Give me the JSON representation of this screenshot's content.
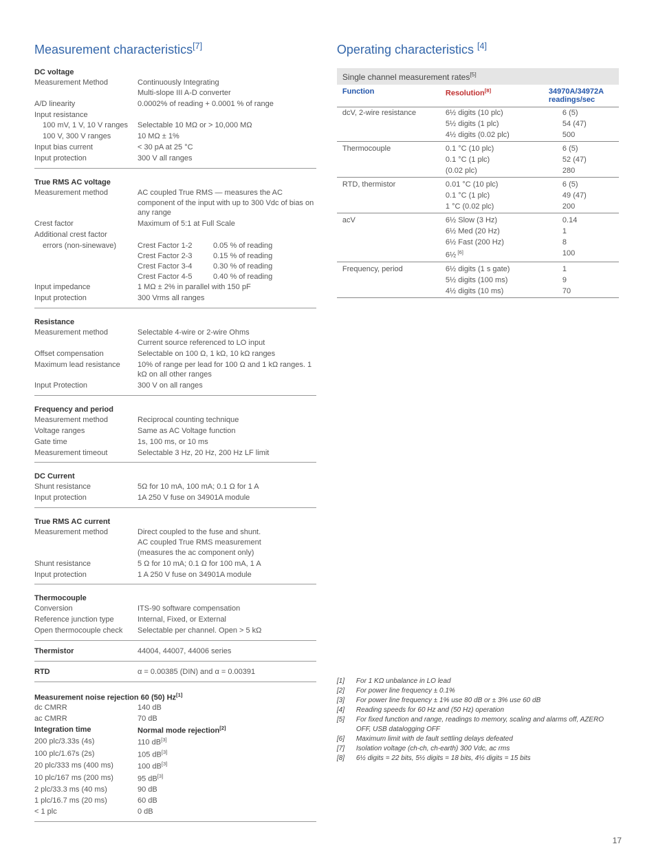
{
  "left": {
    "title": "Measurement characteristics",
    "title_sup": "[7]",
    "sections": [
      {
        "heading": "DC voltage",
        "rows": [
          {
            "label": "Measurement Method",
            "value": "Continuously Integrating\nMulti-slope III A-D converter"
          },
          {
            "label": "A/D linearity",
            "value": "0.0002% of reading + 0.0001 % of range"
          },
          {
            "label": "Input resistance",
            "value": ""
          },
          {
            "label": "100 mV, 1 V, 10 V ranges",
            "indent": true,
            "value": "Selectable 10 MΩ or > 10,000 MΩ"
          },
          {
            "label": "100 V, 300 V ranges",
            "indent": true,
            "value": "10 MΩ ± 1%"
          },
          {
            "label": "Input bias current",
            "value": "< 30 pA at 25 °C"
          },
          {
            "label": "Input protection",
            "value": "300 V all ranges"
          }
        ]
      },
      {
        "heading": "True RMS AC voltage",
        "rows": [
          {
            "label": "Measurement method",
            "value": "AC coupled True RMS — measures the AC component of the input with up to 300 Vdc of bias on any range"
          },
          {
            "label": "Crest factor",
            "value": "Maximum of 5:1 at Full Scale"
          },
          {
            "label": "Additional crest factor",
            "value": ""
          },
          {
            "label": "errors (non-sinewave)",
            "indent": true,
            "cf": [
              {
                "l": "Crest Factor 1-2",
                "r": "0.05 % of reading"
              },
              {
                "l": "Crest Factor 2-3",
                "r": "0.15 % of reading"
              },
              {
                "l": "Crest Factor 3-4",
                "r": "0.30 % of reading"
              },
              {
                "l": "Crest Factor 4-5",
                "r": "0.40 % of reading"
              }
            ]
          },
          {
            "label": "Input impedance",
            "value": "1 MΩ ± 2% in parallel with 150 pF"
          },
          {
            "label": "Input protection",
            "value": "300 Vrms all ranges"
          }
        ]
      },
      {
        "heading": "Resistance",
        "rows": [
          {
            "label": "Measurement method",
            "value": "Selectable 4-wire or 2-wire Ohms\nCurrent source referenced to LO input"
          },
          {
            "label": "Offset compensation",
            "value": "Selectable on 100 Ω, 1 kΩ, 10 kΩ ranges"
          },
          {
            "label": "Maximum lead resistance",
            "value": "10% of range per lead for 100 Ω and 1 kΩ ranges. 1 kΩ on all other ranges"
          },
          {
            "label": "Input Protection",
            "value": "300 V on all ranges"
          }
        ]
      },
      {
        "heading": "Frequency and period",
        "rows": [
          {
            "label": "Measurement method",
            "value": "Reciprocal counting technique"
          },
          {
            "label": "Voltage ranges",
            "value": "Same as AC Voltage function"
          },
          {
            "label": "Gate time",
            "value": "1s, 100 ms, or 10 ms"
          },
          {
            "label": "Measurement timeout",
            "value": "Selectable 3 Hz, 20 Hz, 200 Hz LF limit"
          }
        ]
      },
      {
        "heading": "DC Current",
        "rows": [
          {
            "label": "Shunt resistance",
            "value": "5Ω for 10 mA, 100 mA; 0.1 Ω for 1 A"
          },
          {
            "label": "Input protection",
            "value": "1A 250 V fuse on 34901A module"
          }
        ]
      },
      {
        "heading": "True RMS AC current",
        "rows": [
          {
            "label": "Measurement method",
            "value": "Direct coupled to the fuse and shunt.\nAC coupled True RMS measurement\n(measures the ac component only)"
          },
          {
            "label": "Shunt resistance",
            "value": "5 Ω for 10 mA; 0.1 Ω for 100 mA, 1 A"
          },
          {
            "label": "Input protection",
            "value": "1 A 250 V fuse on 34901A module"
          }
        ]
      },
      {
        "heading": "Thermocouple",
        "rows": [
          {
            "label": "Conversion",
            "value": "ITS-90 software compensation"
          },
          {
            "label": "Reference junction type",
            "value": "Internal, Fixed, or External"
          },
          {
            "label": "Open thermocouple check",
            "value": "Selectable per channel. Open > 5 kΩ"
          }
        ]
      },
      {
        "heading": "Thermistor",
        "single": true,
        "rows": [
          {
            "label": "",
            "value": "44004, 44007, 44006 series"
          }
        ]
      },
      {
        "heading": "RTD",
        "single": true,
        "rows": [
          {
            "label": "",
            "value": "α = 0.00385 (DIN) and α = 0.00391"
          }
        ]
      },
      {
        "heading": "Measurement noise rejection 60 (50) Hz",
        "heading_sup": "[1]",
        "rows": [
          {
            "label": "dc CMRR",
            "value": "140 dB"
          },
          {
            "label": "ac CMRR",
            "value": "70 dB"
          },
          {
            "label": "Integration time",
            "bold": true,
            "value": "Normal mode rejection",
            "value_sup": "[2]",
            "value_bold": true
          },
          {
            "label": "200 plc/3.33s (4s)",
            "value": "110 dB",
            "value_sup": "[3]"
          },
          {
            "label": "100 plc/1.67s (2s)",
            "value": "105 dB",
            "value_sup": "[3]"
          },
          {
            "label": "20 plc/333 ms (400 ms)",
            "value": "100 dB",
            "value_sup": "[3]"
          },
          {
            "label": "10 plc/167 ms (200 ms)",
            "value": "95 dB",
            "value_sup": "[3]"
          },
          {
            "label": "2 plc/33.3 ms (40 ms)",
            "value": "90 dB"
          },
          {
            "label": "1 plc/16.7 ms (20 ms)",
            "value": "60 dB"
          },
          {
            "label": "< 1 plc",
            "value": "0 dB"
          }
        ]
      }
    ]
  },
  "right": {
    "title": "Operating characteristics",
    "title_sup": "[4]",
    "table": {
      "title": "Single channel measurement rates",
      "title_sup": "[5]",
      "head": [
        "Function",
        "Resolution",
        "34970A/34972A readings/sec"
      ],
      "head_sup": [
        "",
        "[8]",
        ""
      ],
      "groups": [
        {
          "fn": "dcV, 2-wire resistance",
          "rows": [
            {
              "r": "6½ digits (10 plc)",
              "v": "6 (5)"
            },
            {
              "r": "5½ digits (1 plc)",
              "v": "54 (47)"
            },
            {
              "r": "4½ digits (0.02 plc)",
              "v": "500"
            }
          ]
        },
        {
          "fn": "Thermocouple",
          "rows": [
            {
              "r": "0.1 °C (10 plc)",
              "v": "6 (5)"
            },
            {
              "r": "0.1 °C (1 plc)",
              "v": "52 (47)"
            },
            {
              "r": "(0.02 plc)",
              "v": "280"
            }
          ]
        },
        {
          "fn": "RTD, thermistor",
          "rows": [
            {
              "r": "0.01 °C (10 plc)",
              "v": "6 (5)"
            },
            {
              "r": "0.1 °C (1 plc)",
              "v": "49 (47)"
            },
            {
              "r": "1 °C (0.02 plc)",
              "v": "200"
            }
          ]
        },
        {
          "fn": "acV",
          "rows": [
            {
              "r": "6½ Slow (3 Hz)",
              "v": "0.14"
            },
            {
              "r": "6½ Med (20 Hz)",
              "v": "1"
            },
            {
              "r": "6½ Fast (200 Hz)",
              "v": "8"
            },
            {
              "r": "6½",
              "r_sup": "[6]",
              "v": "100"
            }
          ]
        },
        {
          "fn": "Frequency, period",
          "rows": [
            {
              "r": "6½ digits (1 s gate)",
              "v": "1"
            },
            {
              "r": "5½ digits (100 ms)",
              "v": "9"
            },
            {
              "r": "4½ digits (10 ms)",
              "v": "70"
            }
          ]
        }
      ]
    },
    "footnotes": [
      {
        "n": "[1]",
        "t": "For 1 KΩ unbalance in LO lead"
      },
      {
        "n": "[2]",
        "t": "For power line frequency ± 0.1%"
      },
      {
        "n": "[3]",
        "t": "For power line frequency ± 1% use 80 dB or ± 3% use 60 dB"
      },
      {
        "n": "[4]",
        "t": "Reading speeds for 60 Hz and (50 Hz) operation"
      },
      {
        "n": "[5]",
        "t": "For fixed function and range, readings to memory, scaling and alarms off, AZERO OFF, USB datalogging OFF"
      },
      {
        "n": "[6]",
        "t": "Maximum limit with de fault settling delays defeated"
      },
      {
        "n": "[7]",
        "t": "Isolation voltage (ch-ch, ch-earth) 300 Vdc, ac rms"
      },
      {
        "n": "[8]",
        "t": "6½ digits = 22 bits, 5½ digits = 18 bits, 4½ digits = 15 bits"
      }
    ]
  },
  "page_number": "17"
}
